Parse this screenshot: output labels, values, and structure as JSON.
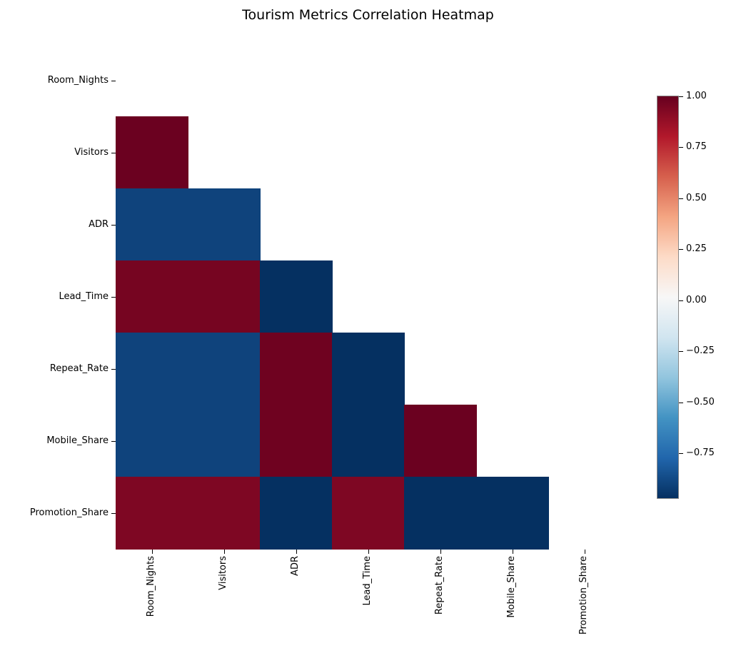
{
  "chart_data": {
    "type": "heatmap",
    "title": "Tourism Metrics Correlation Heatmap",
    "variables": [
      "Room_Nights",
      "Visitors",
      "ADR",
      "Lead_Time",
      "Repeat_Rate",
      "Mobile_Share",
      "Promotion_Share"
    ],
    "matrix": [
      [
        null,
        null,
        null,
        null,
        null,
        null,
        null
      ],
      [
        0.99,
        null,
        null,
        null,
        null,
        null,
        null
      ],
      [
        -0.9,
        -0.9,
        null,
        null,
        null,
        null,
        null
      ],
      [
        0.96,
        0.96,
        -0.97,
        null,
        null,
        null,
        null
      ],
      [
        -0.9,
        -0.9,
        0.98,
        -0.97,
        null,
        null,
        null
      ],
      [
        -0.9,
        -0.9,
        0.98,
        -0.97,
        0.99,
        null,
        null
      ],
      [
        0.94,
        0.94,
        -0.97,
        0.94,
        -0.97,
        -0.97,
        null
      ]
    ],
    "mask": "upper triangle and diagonal hidden",
    "colormap": "RdBu_r",
    "colormap_stops": [
      "#67001f",
      "#b2182b",
      "#d6604d",
      "#f4a582",
      "#fddbc7",
      "#f7f7f7",
      "#d1e5f0",
      "#92c5de",
      "#4393c3",
      "#2166ac",
      "#053061"
    ],
    "vmin": -0.97,
    "vmax": 1.0,
    "colorbar_ticks": [
      1.0,
      0.75,
      0.5,
      0.25,
      0.0,
      -0.25,
      -0.5,
      -0.75
    ],
    "colorbar_tick_labels": [
      "1.00",
      "0.75",
      "0.50",
      "0.25",
      "0.00",
      "−0.25",
      "−0.50",
      "−0.75"
    ],
    "legend_position": "right colorbar",
    "grid": false,
    "colors": {
      "background": "#ffffff",
      "text": "#000000"
    }
  }
}
